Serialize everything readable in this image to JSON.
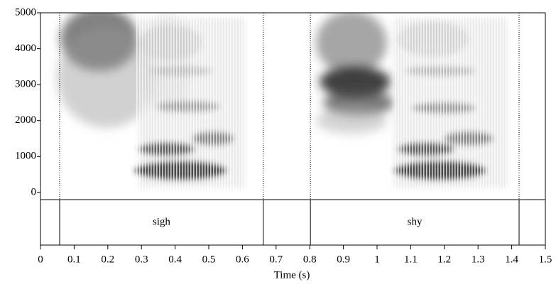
{
  "chart_data": {
    "type": "spectrogram",
    "x_label": "Time (s)",
    "xlim": [
      0,
      1.5
    ],
    "xticks": [
      0,
      0.1,
      0.2,
      0.3,
      0.4,
      0.5,
      0.6,
      0.7,
      0.8,
      0.9,
      1,
      1.1,
      1.2,
      1.3,
      1.4,
      1.5
    ],
    "ylim": [
      -200,
      5000
    ],
    "yticks": [
      0,
      1000,
      2000,
      3000,
      4000,
      5000
    ],
    "intervals": [
      {
        "label": "sigh",
        "start": 0.057,
        "end": 0.662
      },
      {
        "label": "shy",
        "start": 0.802,
        "end": 1.422
      }
    ]
  }
}
